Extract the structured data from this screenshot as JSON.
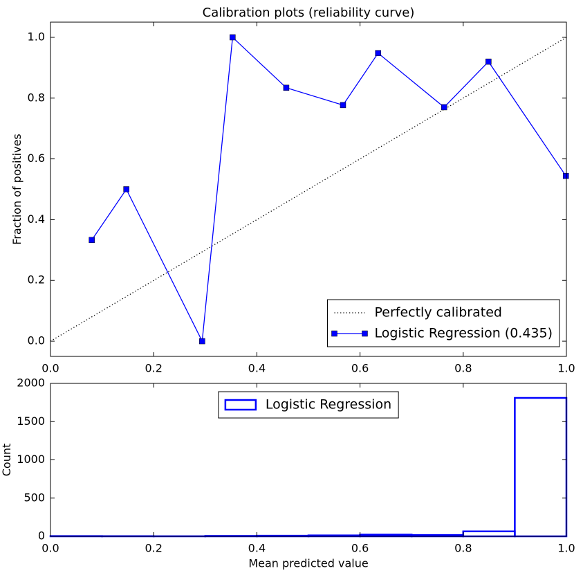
{
  "chart_data": [
    {
      "type": "line",
      "title": "Calibration plots  (reliability curve)",
      "ylabel": "Fraction of positives",
      "xlim": [
        0,
        1
      ],
      "ylim": [
        -0.05,
        1.05
      ],
      "xticks": [
        {
          "value": 0,
          "label": "0.0"
        },
        0.2,
        0.4,
        0.6,
        0.8,
        {
          "value": 1,
          "label": "1.0"
        }
      ],
      "yticks": [
        {
          "value": 0,
          "label": "0.0"
        },
        0.2,
        0.4,
        0.6,
        0.8,
        {
          "value": 1,
          "label": "1.0"
        }
      ],
      "legend": "lower right",
      "series": [
        {
          "name": "Perfectly calibrated",
          "color": "#000000",
          "linestyle": "dotted",
          "x": [
            0,
            1
          ],
          "values": [
            0,
            1
          ]
        },
        {
          "name": "Logistic Regression (0.435)",
          "color": "#0000ff",
          "linestyle": "solid",
          "marker": "square",
          "x": [
            0.08,
            0.147,
            0.294,
            0.353,
            0.457,
            0.567,
            0.635,
            0.763,
            0.849,
            0.999
          ],
          "values": [
            0.333,
            0.5,
            0,
            1,
            0.834,
            0.777,
            0.948,
            0.77,
            0.92,
            0.544
          ]
        }
      ]
    },
    {
      "type": "histogram",
      "xlabel": "Mean predicted value",
      "ylabel": "Count",
      "xlim": [
        0,
        1
      ],
      "ylim": [
        0,
        2000
      ],
      "xticks": [
        {
          "value": 0,
          "label": "0.0"
        },
        0.2,
        0.4,
        0.6,
        0.8,
        {
          "value": 1,
          "label": "1.0"
        }
      ],
      "yticks": [
        0,
        500,
        1000,
        1500,
        2000
      ],
      "legend": "upper center",
      "bins": [
        0,
        0.1,
        0.2,
        0.3,
        0.4,
        0.5,
        0.6,
        0.7,
        0.8,
        0.9,
        1
      ],
      "series": [
        {
          "name": "Logistic Regression",
          "color": "#0000ff",
          "values": [
            3,
            2,
            1,
            5,
            8,
            12,
            22,
            17,
            65,
            1810
          ]
        }
      ]
    }
  ]
}
